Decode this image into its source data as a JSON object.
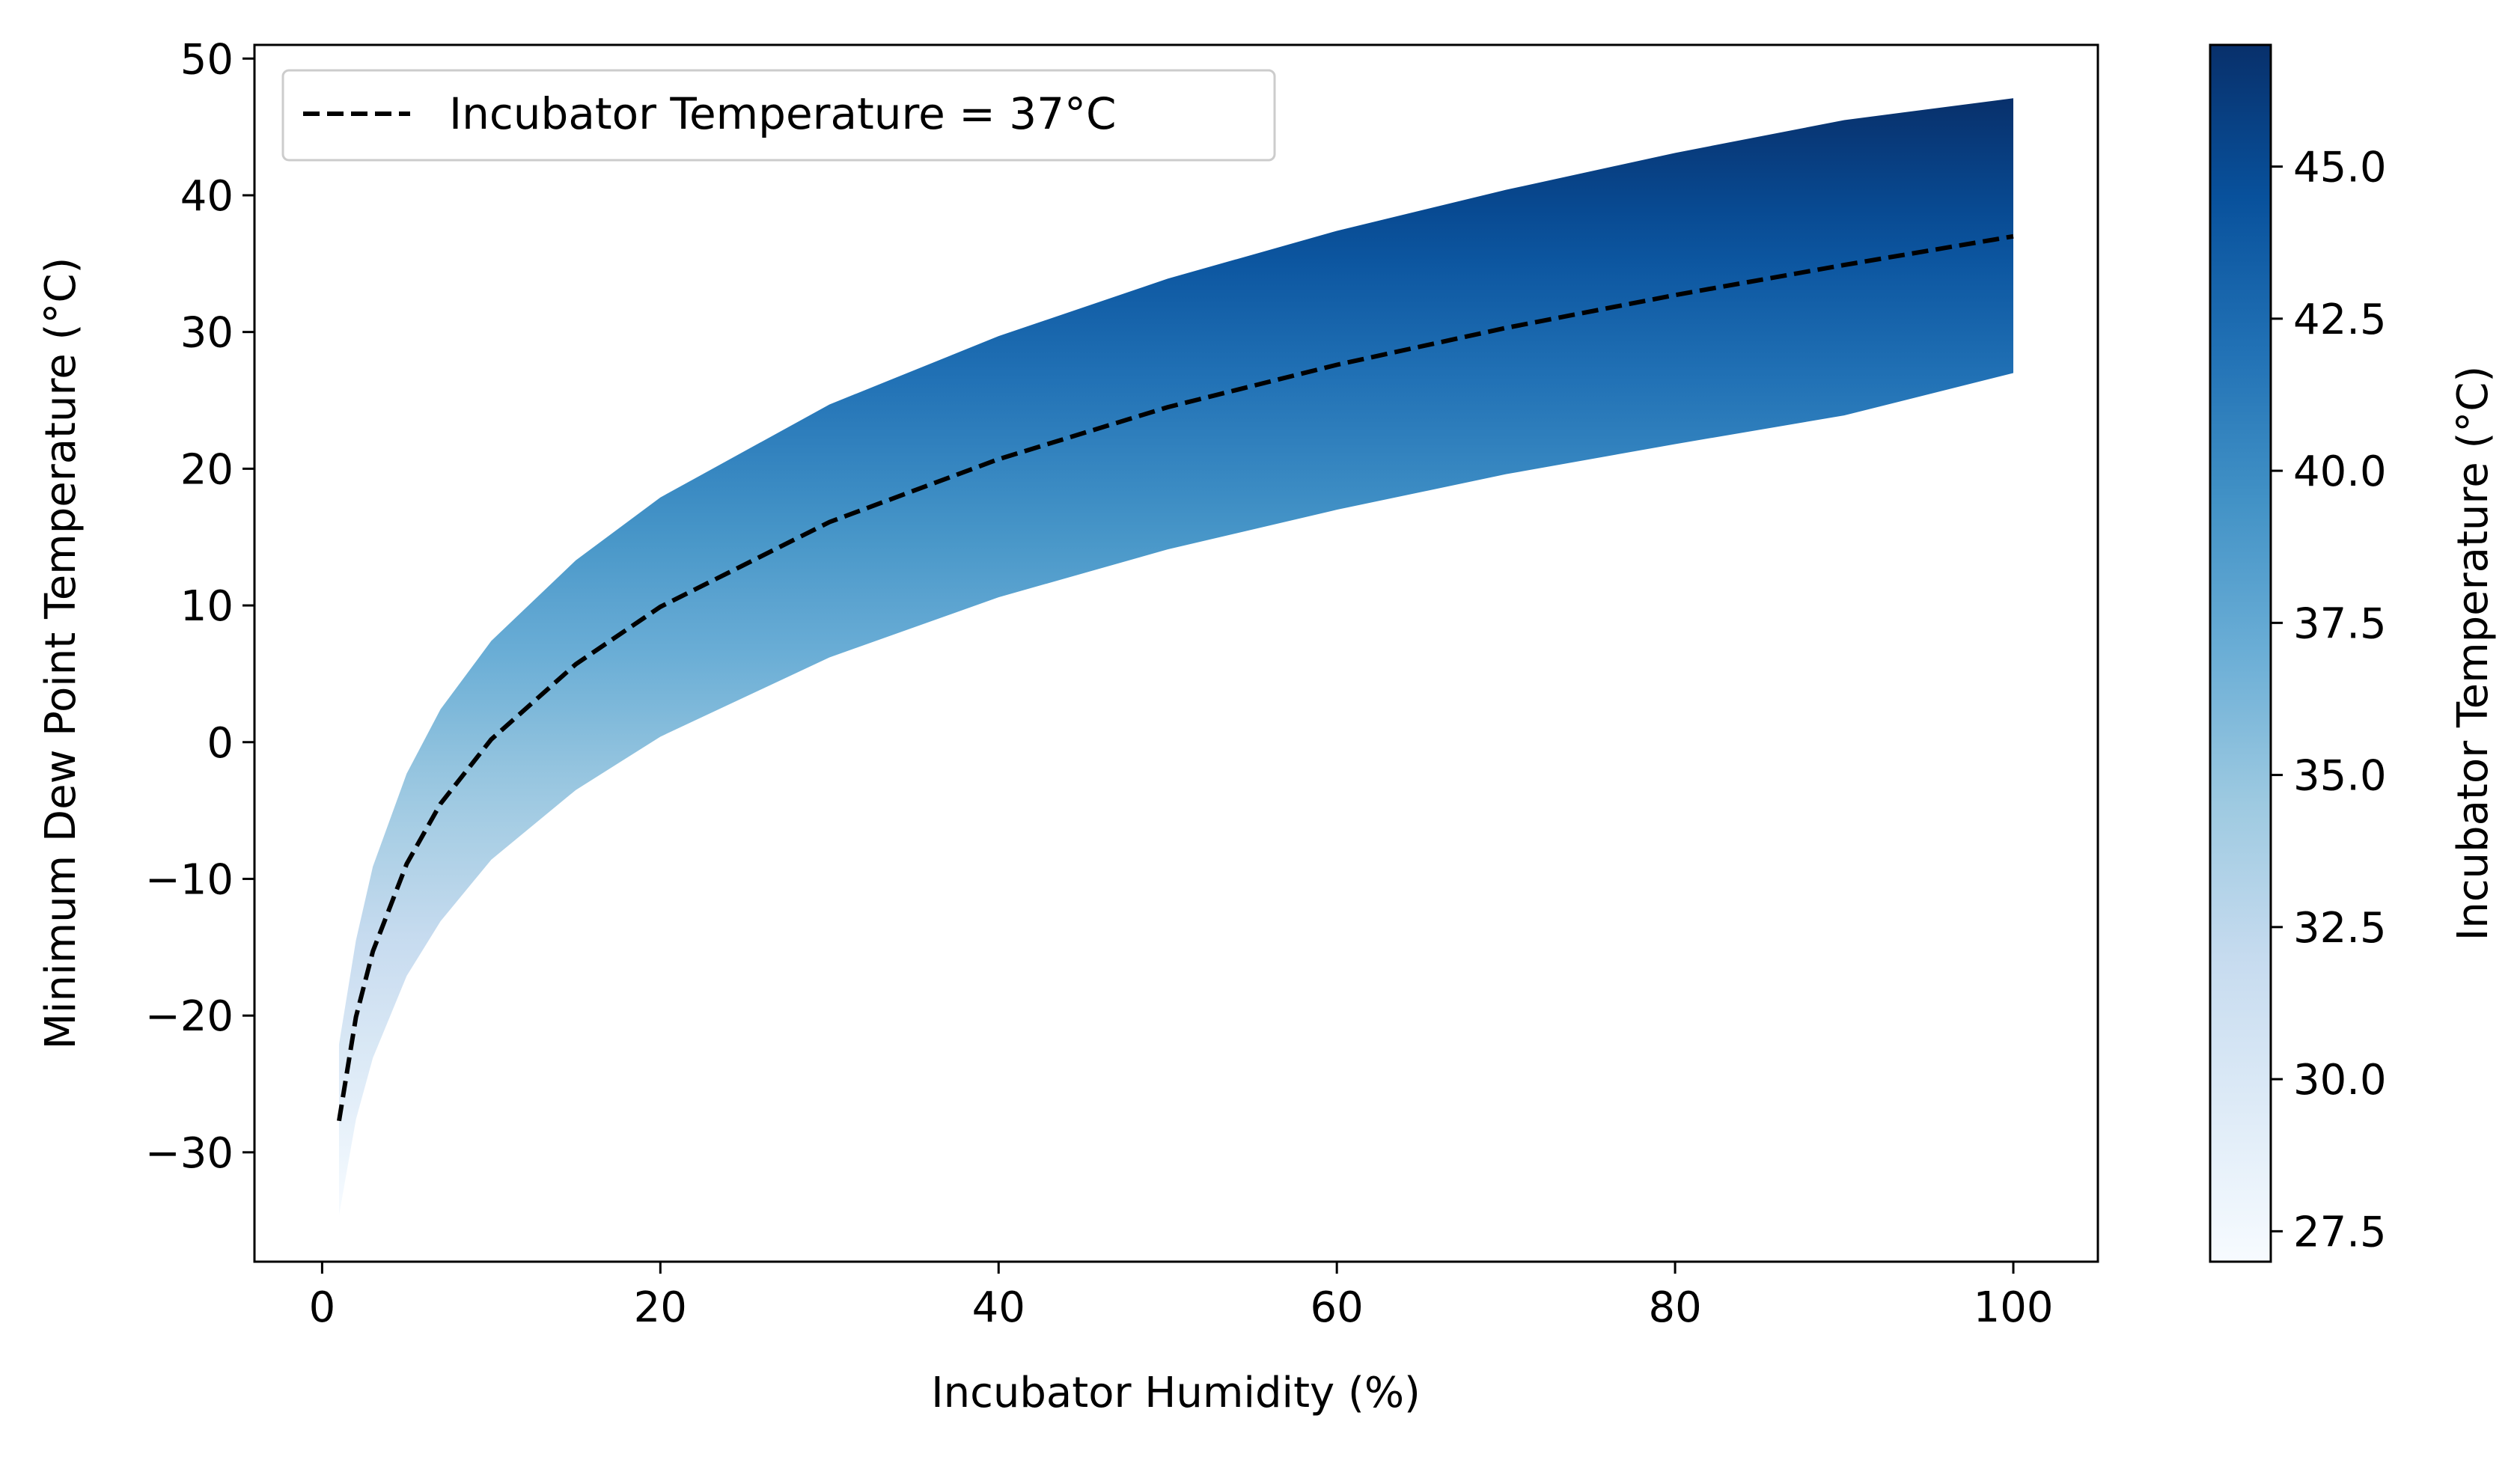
{
  "chart_data": {
    "type": "area",
    "title": "",
    "xlabel": "Incubator Humidity (%)",
    "ylabel": "Minimum Dew Point Temperature (°C)",
    "xlim": [
      -4,
      105
    ],
    "ylim": [
      -38,
      51
    ],
    "xticks": [
      "0",
      "20",
      "40",
      "60",
      "80",
      "100"
    ],
    "yticks": [
      "−30",
      "−20",
      "−10",
      "0",
      "10",
      "20",
      "30",
      "40",
      "50"
    ],
    "grid": false,
    "legend": {
      "position": "top-left",
      "label": "Incubator Temperature = 37°C"
    },
    "series": [
      {
        "name": "Incubator Temperature = 37°C",
        "style": "dashed",
        "color": "#000000",
        "x": [
          1,
          2,
          3,
          5,
          7,
          10,
          15,
          20,
          30,
          40,
          50,
          60,
          70,
          80,
          90,
          100
        ],
        "y": [
          -27.7,
          -20.1,
          -15.3,
          -8.9,
          -4.5,
          0.2,
          5.7,
          9.9,
          16.1,
          20.7,
          24.5,
          27.6,
          30.3,
          32.7,
          34.9,
          37.0
        ]
      }
    ],
    "band": {
      "description_range_of_temperatures": [
        27,
        47
      ],
      "x": [
        1,
        2,
        3,
        5,
        7,
        10,
        15,
        20,
        30,
        40,
        50,
        60,
        70,
        80,
        90,
        100
      ],
      "y_lower": [
        -34.6,
        -27.6,
        -23.1,
        -17.1,
        -13.1,
        -8.6,
        -3.5,
        0.4,
        6.2,
        10.6,
        14.1,
        17.0,
        19.6,
        21.8,
        23.9,
        27.0
      ],
      "y_upper": [
        -22.1,
        -14.5,
        -9.1,
        -2.3,
        2.4,
        7.4,
        13.3,
        17.9,
        24.7,
        29.7,
        33.9,
        37.4,
        40.4,
        43.1,
        45.5,
        47.1
      ]
    },
    "colorbar": {
      "label": "Incubator Temperature (°C)",
      "colormap": "Blues",
      "range": [
        27,
        47
      ],
      "ticks": [
        "27.5",
        "30.0",
        "32.5",
        "35.0",
        "37.5",
        "40.0",
        "42.5",
        "45.0"
      ],
      "colors": [
        "#f7fbff",
        "#deebf7",
        "#c6dbef",
        "#9ecae1",
        "#6baed6",
        "#4292c6",
        "#2171b5",
        "#08519c",
        "#08306b"
      ]
    }
  }
}
